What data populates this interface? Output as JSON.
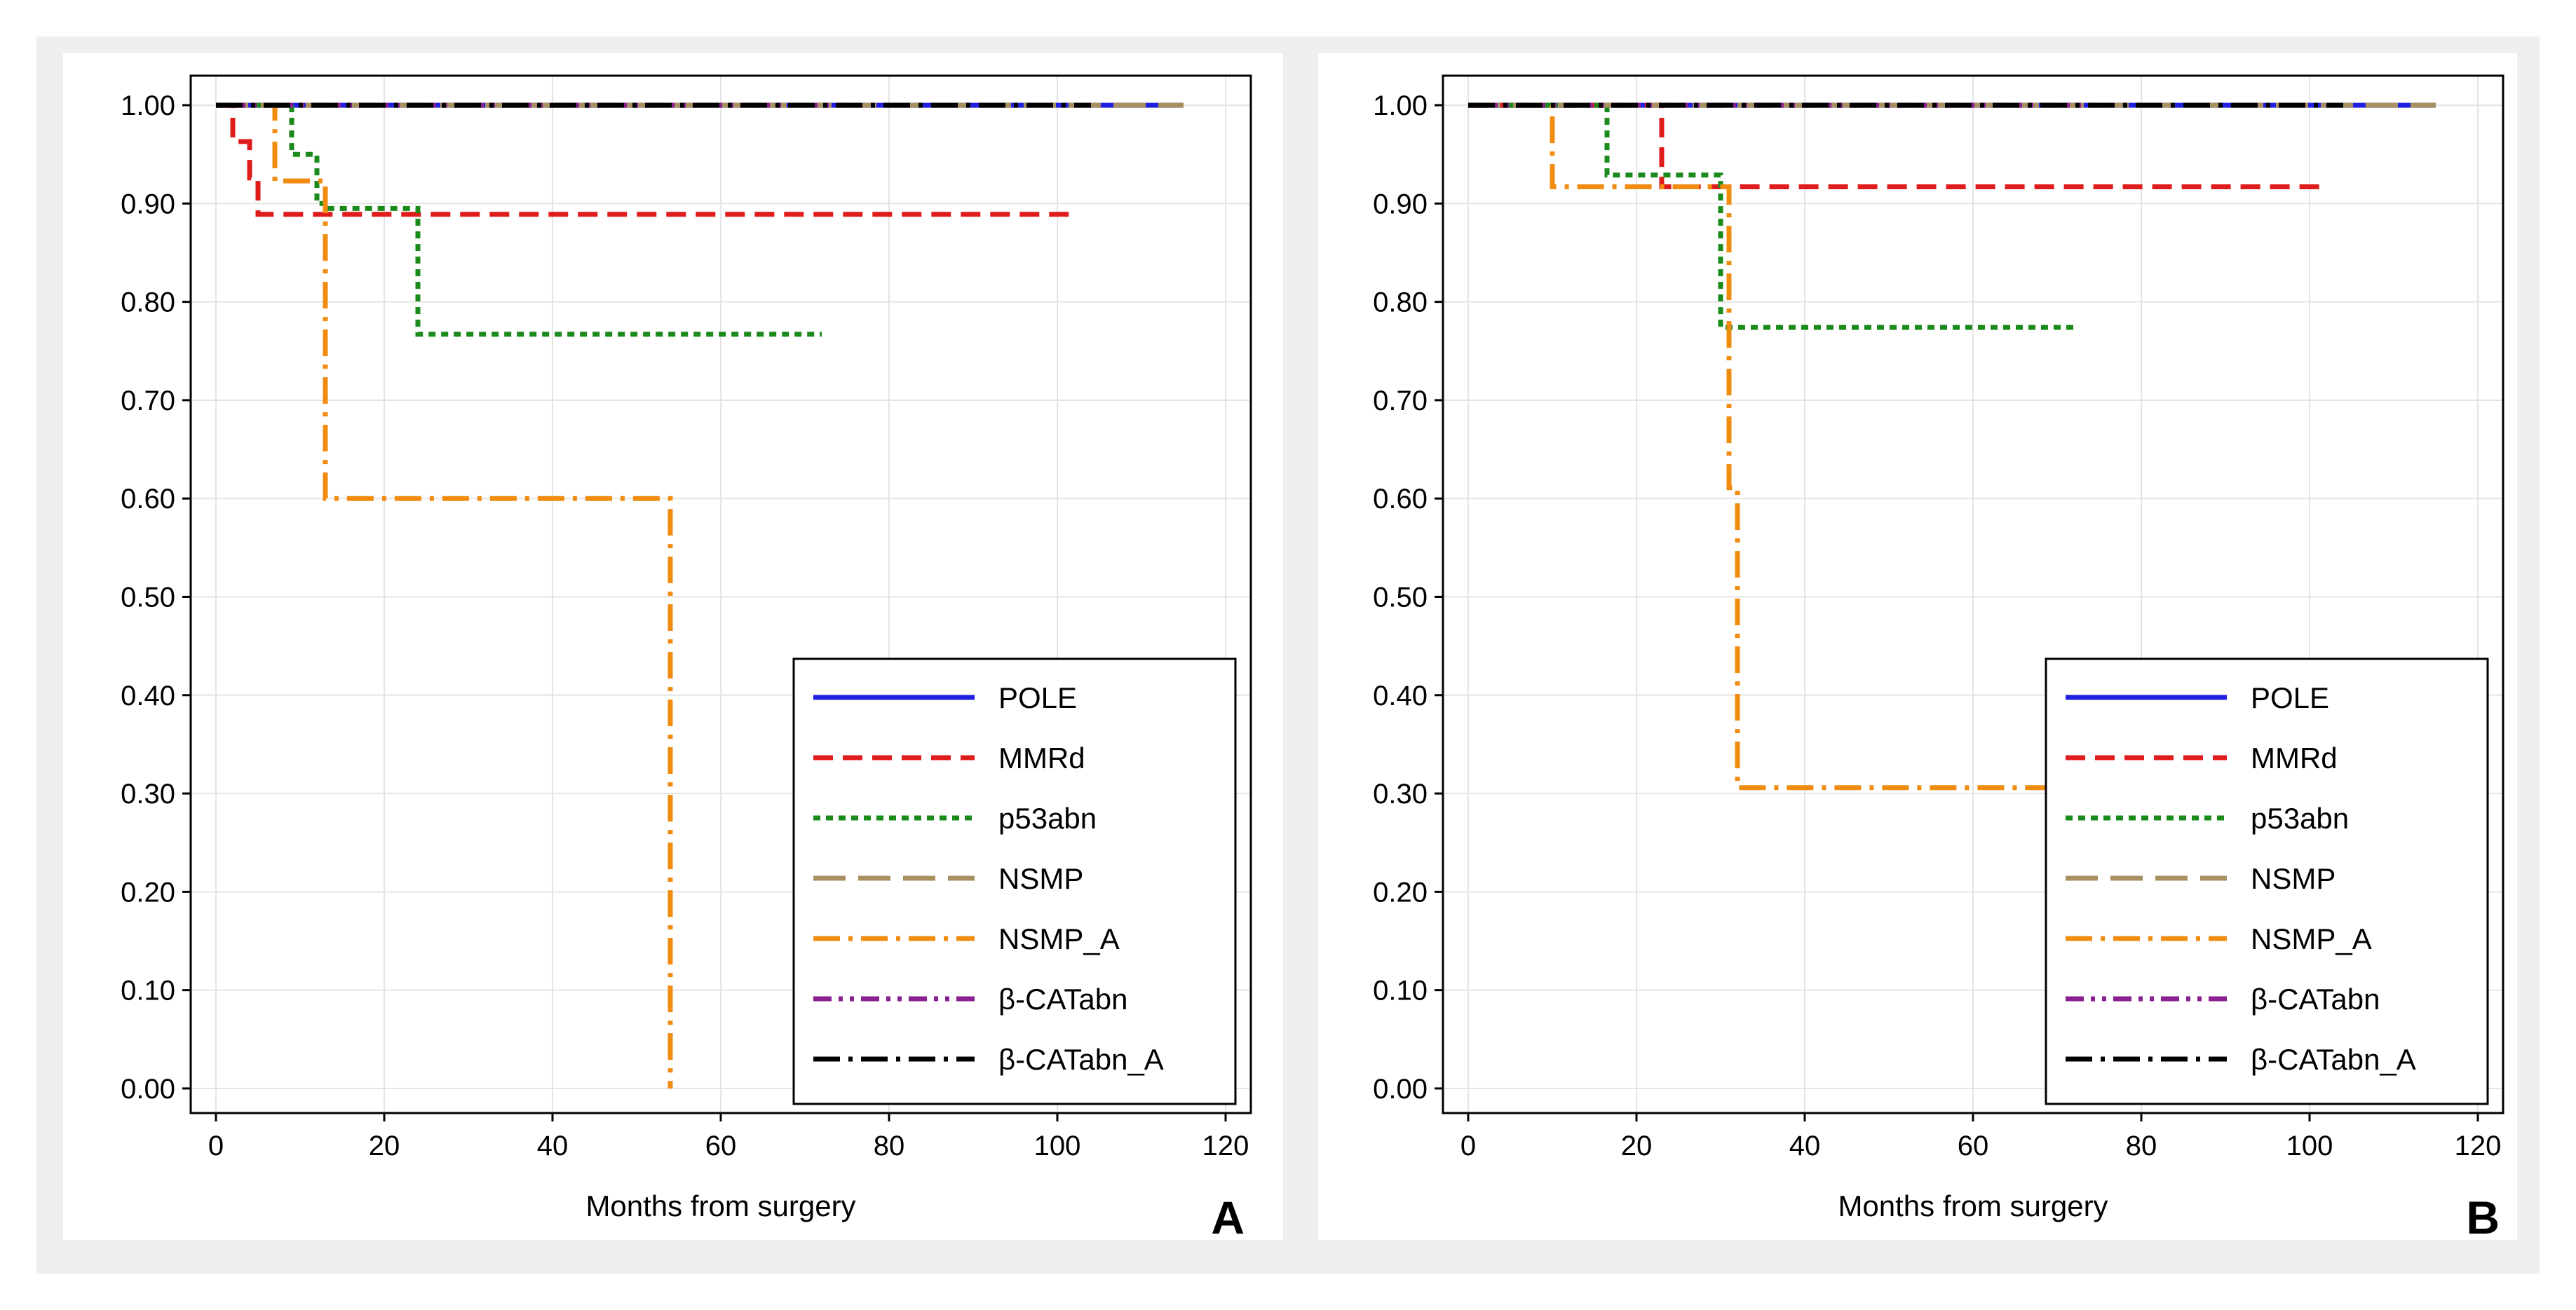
{
  "styles": {
    "POLE": {
      "color": "#2020e0",
      "dash": "solid"
    },
    "MMRd": {
      "color": "#e01b1b",
      "dash": "dashed"
    },
    "p53abn": {
      "color": "#1a8a1a",
      "dash": "dotted"
    },
    "NSMP": {
      "color": "#a89060",
      "dash": "longdash"
    },
    "NSMP_A": {
      "color": "#f08c10",
      "dash": "dashdot"
    },
    "β-CATabn": {
      "color": "#8a2090",
      "dash": "dashdotdot"
    },
    "β-CATabn_A": {
      "color": "#000000",
      "dash": "dashdot"
    }
  },
  "chart_data": [
    {
      "type": "line",
      "panel_label": "A",
      "xlabel": "Months from surgery",
      "ylabel": "",
      "xlim": [
        -3,
        123
      ],
      "ylim": [
        -0.025,
        1.03
      ],
      "xticks": [
        "0",
        "20",
        "40",
        "60",
        "80",
        "100",
        "120"
      ],
      "yticks": [
        "0.00",
        "0.10",
        "0.20",
        "0.30",
        "0.40",
        "0.50",
        "0.60",
        "0.70",
        "0.80",
        "0.90",
        "1.00"
      ],
      "legend_position": "bottom-right",
      "series": [
        {
          "name": "POLE",
          "x": [
            0,
            115
          ],
          "y": [
            1.0,
            1.0
          ]
        },
        {
          "name": "MMRd",
          "x": [
            0,
            2,
            2,
            4,
            4,
            5,
            5,
            102
          ],
          "y": [
            1.0,
            1.0,
            0.963,
            0.963,
            0.926,
            0.926,
            0.889,
            0.889
          ]
        },
        {
          "name": "p53abn",
          "x": [
            0,
            9,
            9,
            12,
            12,
            13,
            13,
            24,
            24,
            72
          ],
          "y": [
            1.0,
            1.0,
            0.95,
            0.95,
            0.9,
            0.9,
            0.895,
            0.895,
            0.767,
            0.767
          ]
        },
        {
          "name": "NSMP",
          "x": [
            0,
            115
          ],
          "y": [
            1.0,
            1.0
          ]
        },
        {
          "name": "NSMP_A",
          "x": [
            0,
            7,
            7,
            13,
            13,
            54,
            54
          ],
          "y": [
            1.0,
            1.0,
            0.923,
            0.923,
            0.6,
            0.6,
            0.0
          ]
        },
        {
          "name": "β-CATabn",
          "x": [
            0,
            75
          ],
          "y": [
            1.0,
            1.0
          ]
        },
        {
          "name": "β-CATabn_A",
          "x": [
            0,
            104
          ],
          "y": [
            1.0,
            1.0
          ]
        }
      ]
    },
    {
      "type": "line",
      "panel_label": "B",
      "xlabel": "Months from surgery",
      "ylabel": "",
      "xlim": [
        -3,
        123
      ],
      "ylim": [
        -0.025,
        1.03
      ],
      "xticks": [
        "0",
        "20",
        "40",
        "60",
        "80",
        "100",
        "120"
      ],
      "yticks": [
        "0.00",
        "0.10",
        "0.20",
        "0.30",
        "0.40",
        "0.50",
        "0.60",
        "0.70",
        "0.80",
        "0.90",
        "1.00"
      ],
      "legend_position": "bottom-right",
      "series": [
        {
          "name": "POLE",
          "x": [
            0,
            115
          ],
          "y": [
            1.0,
            1.0
          ]
        },
        {
          "name": "MMRd",
          "x": [
            0,
            23,
            23,
            102
          ],
          "y": [
            1.0,
            1.0,
            0.917,
            0.917
          ]
        },
        {
          "name": "p53abn",
          "x": [
            0,
            16.5,
            16.5,
            30,
            30,
            72
          ],
          "y": [
            1.0,
            1.0,
            0.929,
            0.929,
            0.774,
            0.774
          ]
        },
        {
          "name": "NSMP",
          "x": [
            0,
            115
          ],
          "y": [
            1.0,
            1.0
          ]
        },
        {
          "name": "NSMP_A",
          "x": [
            0,
            10,
            10,
            31,
            31,
            32,
            32,
            70
          ],
          "y": [
            1.0,
            1.0,
            0.917,
            0.917,
            0.611,
            0.611,
            0.306,
            0.306
          ]
        },
        {
          "name": "β-CATabn",
          "x": [
            0,
            75
          ],
          "y": [
            1.0,
            1.0
          ]
        },
        {
          "name": "β-CATabn_A",
          "x": [
            0,
            104
          ],
          "y": [
            1.0,
            1.0
          ]
        }
      ]
    }
  ]
}
